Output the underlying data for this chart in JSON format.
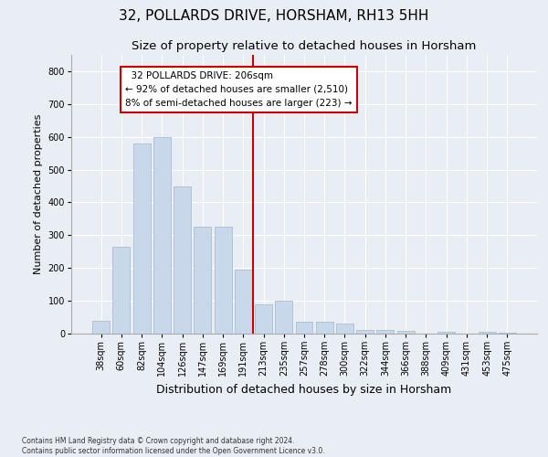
{
  "title": "32, POLLARDS DRIVE, HORSHAM, RH13 5HH",
  "subtitle": "Size of property relative to detached houses in Horsham",
  "xlabel": "Distribution of detached houses by size in Horsham",
  "ylabel": "Number of detached properties",
  "categories": [
    "38sqm",
    "60sqm",
    "82sqm",
    "104sqm",
    "126sqm",
    "147sqm",
    "169sqm",
    "191sqm",
    "213sqm",
    "235sqm",
    "257sqm",
    "278sqm",
    "300sqm",
    "322sqm",
    "344sqm",
    "366sqm",
    "388sqm",
    "409sqm",
    "431sqm",
    "453sqm",
    "475sqm"
  ],
  "values": [
    38,
    265,
    580,
    600,
    450,
    325,
    325,
    195,
    90,
    100,
    35,
    35,
    30,
    12,
    12,
    8,
    0,
    5,
    0,
    5,
    2
  ],
  "bar_color": "#c8d8ea",
  "bar_edge_color": "#aabfcf",
  "vline_x_index": 8,
  "vline_color": "#cc0000",
  "annotation_text": "  32 POLLARDS DRIVE: 206sqm  \n← 92% of detached houses are smaller (2,510)\n8% of semi-detached houses are larger (223) →",
  "annotation_box_color": "#ffffff",
  "annotation_box_edge": "#cc0000",
  "ylim": [
    0,
    850
  ],
  "yticks": [
    0,
    100,
    200,
    300,
    400,
    500,
    600,
    700,
    800
  ],
  "background_color": "#e8eef4",
  "plot_background": "#e8eef4",
  "grid_color": "#ffffff",
  "title_fontsize": 11,
  "subtitle_fontsize": 9.5,
  "tick_fontsize": 7,
  "ylabel_fontsize": 8,
  "xlabel_fontsize": 9,
  "footer_text": "Contains HM Land Registry data © Crown copyright and database right 2024.\nContains public sector information licensed under the Open Government Licence v3.0."
}
